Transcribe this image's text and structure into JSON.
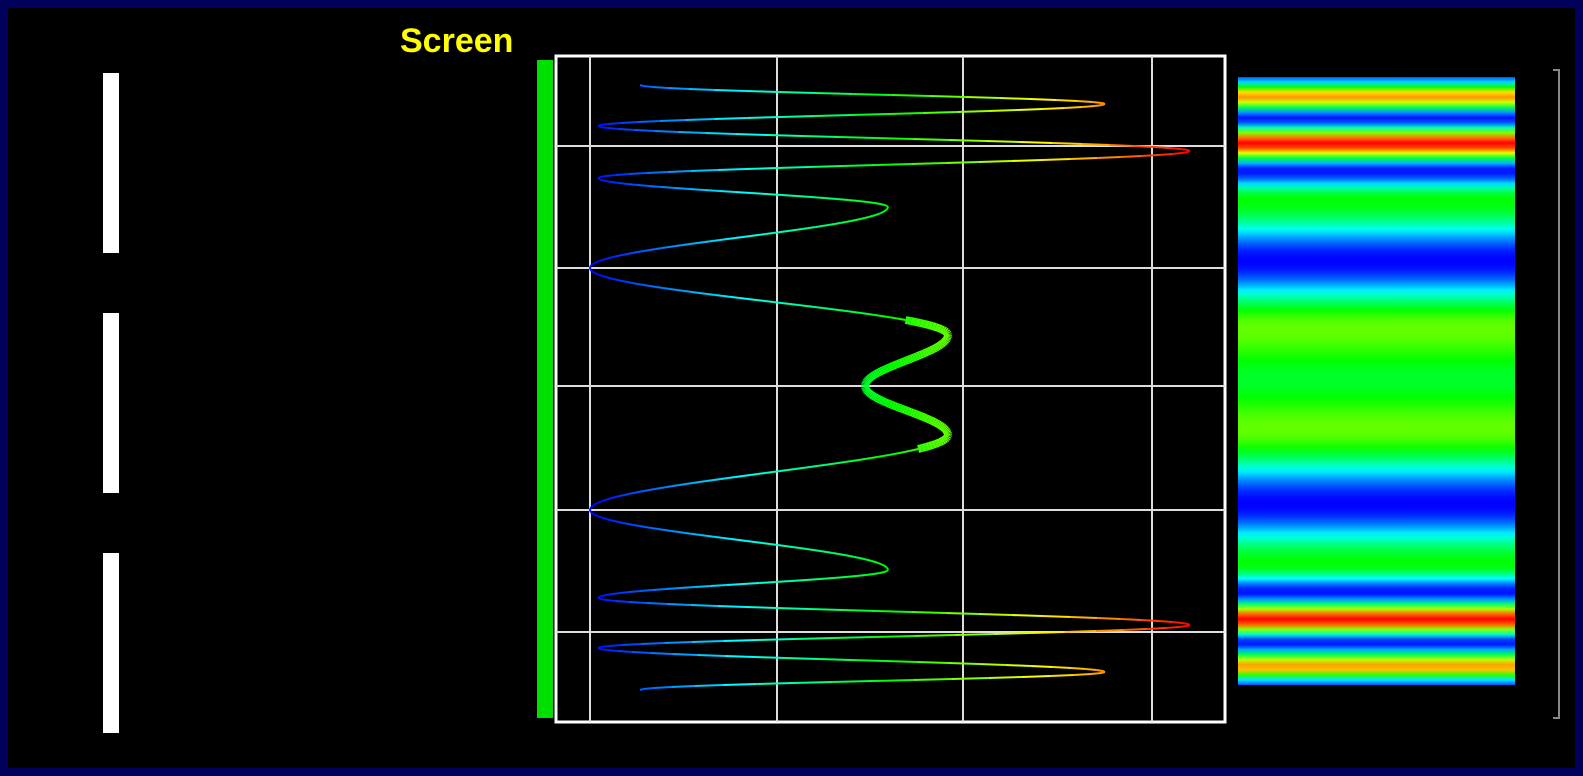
{
  "label": "Screen"
}
